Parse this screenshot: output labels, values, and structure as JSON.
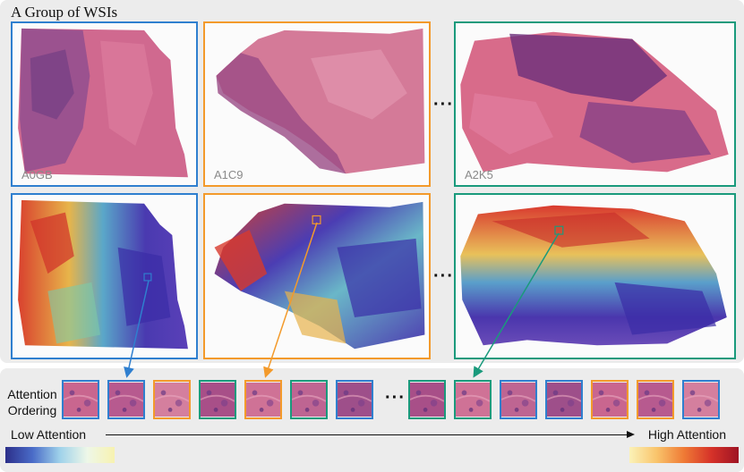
{
  "title": "A Group of WSIs",
  "slides": [
    {
      "label": "A0GB",
      "color": "#2f7fcf"
    },
    {
      "label": "A1C9",
      "color": "#f39a2b"
    },
    {
      "label": "A2K5",
      "color": "#1a9a7c"
    }
  ],
  "ellipsis": "···",
  "ordering": {
    "label_line1": "Attention",
    "label_line2": "Ordering",
    "patches_left": [
      "A0GB",
      "A0GB",
      "A1C9",
      "A2K5",
      "A1C9",
      "A2K5",
      "A0GB"
    ],
    "patches_right": [
      "A2K5",
      "A2K5",
      "A0GB",
      "A0GB",
      "A1C9",
      "A1C9",
      "A0GB"
    ]
  },
  "axis": {
    "low": "Low Attention",
    "high": "High Attention",
    "low_colors": [
      "#2c2f8a",
      "#4a6cc8",
      "#9fd2ea",
      "#eef7e8",
      "#f7f2b0"
    ],
    "high_colors": [
      "#fbf2b8",
      "#f9c46b",
      "#ef7a35",
      "#d63229",
      "#9e1424"
    ]
  }
}
